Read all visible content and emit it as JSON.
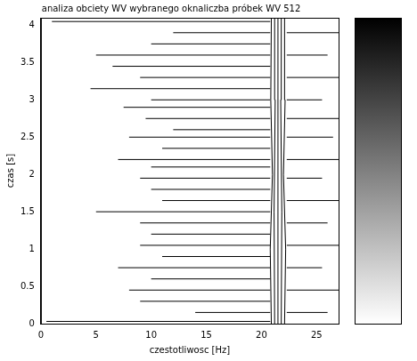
{
  "chart_data": {
    "type": "contour",
    "title": "analiza obciety WV wybranego oknaliczba próbek WV 512",
    "x_label": "czestotliwosc [Hz]",
    "y_label": "czas [s]",
    "xlim": [
      0,
      27
    ],
    "xticks": [
      0,
      5,
      10,
      15,
      20,
      25
    ],
    "ylim": [
      0,
      4.1
    ],
    "yticks": [
      0,
      0.5,
      1,
      1.5,
      2,
      2.5,
      3,
      3.5,
      4
    ],
    "grid": false,
    "color": "#000000",
    "colorbar": {
      "colors": [
        "#ffffff",
        "#000000"
      ]
    },
    "contours": [
      [
        [
          20.9,
          0
        ],
        [
          20.8,
          1
        ],
        [
          21.0,
          2
        ],
        [
          20.85,
          3
        ],
        [
          20.9,
          4.1
        ]
      ],
      [
        [
          21.2,
          0
        ],
        [
          21.15,
          1.5
        ],
        [
          21.25,
          3
        ],
        [
          21.2,
          4.1
        ]
      ],
      [
        [
          21.5,
          0
        ],
        [
          21.5,
          4.1
        ]
      ],
      [
        [
          21.8,
          0
        ],
        [
          21.85,
          1.5
        ],
        [
          21.75,
          3
        ],
        [
          21.8,
          4.1
        ]
      ],
      [
        [
          22.1,
          0
        ],
        [
          22.2,
          1
        ],
        [
          22.0,
          2
        ],
        [
          22.15,
          3
        ],
        [
          22.1,
          4.1
        ]
      ],
      [
        [
          1,
          4.05
        ],
        [
          20.8,
          4.05
        ]
      ],
      [
        [
          12,
          3.9
        ],
        [
          20.8,
          3.9
        ]
      ],
      [
        [
          10,
          3.75
        ],
        [
          20.8,
          3.75
        ]
      ],
      [
        [
          5,
          3.6
        ],
        [
          20.8,
          3.6
        ]
      ],
      [
        [
          6.5,
          3.45
        ],
        [
          20.8,
          3.45
        ]
      ],
      [
        [
          9,
          3.3
        ],
        [
          20.8,
          3.3
        ]
      ],
      [
        [
          4.5,
          3.15
        ],
        [
          20.8,
          3.15
        ]
      ],
      [
        [
          10,
          3.0
        ],
        [
          20.8,
          3.0
        ]
      ],
      [
        [
          7.5,
          2.9
        ],
        [
          20.8,
          2.9
        ]
      ],
      [
        [
          9.5,
          2.75
        ],
        [
          20.8,
          2.75
        ]
      ],
      [
        [
          12,
          2.6
        ],
        [
          20.8,
          2.6
        ]
      ],
      [
        [
          8,
          2.5
        ],
        [
          20.8,
          2.5
        ]
      ],
      [
        [
          11,
          2.35
        ],
        [
          20.8,
          2.35
        ]
      ],
      [
        [
          7,
          2.2
        ],
        [
          20.8,
          2.2
        ]
      ],
      [
        [
          10,
          2.1
        ],
        [
          20.8,
          2.1
        ]
      ],
      [
        [
          9,
          1.95
        ],
        [
          20.8,
          1.95
        ]
      ],
      [
        [
          10,
          1.8
        ],
        [
          20.8,
          1.8
        ]
      ],
      [
        [
          11,
          1.65
        ],
        [
          20.8,
          1.65
        ]
      ],
      [
        [
          5,
          1.5
        ],
        [
          20.8,
          1.5
        ]
      ],
      [
        [
          9,
          1.35
        ],
        [
          20.8,
          1.35
        ]
      ],
      [
        [
          10,
          1.2
        ],
        [
          20.8,
          1.2
        ]
      ],
      [
        [
          9,
          1.05
        ],
        [
          20.8,
          1.05
        ]
      ],
      [
        [
          11,
          0.9
        ],
        [
          20.8,
          0.9
        ]
      ],
      [
        [
          7,
          0.75
        ],
        [
          20.8,
          0.75
        ]
      ],
      [
        [
          10,
          0.6
        ],
        [
          20.8,
          0.6
        ]
      ],
      [
        [
          8,
          0.45
        ],
        [
          20.8,
          0.45
        ]
      ],
      [
        [
          9,
          0.3
        ],
        [
          20.8,
          0.3
        ]
      ],
      [
        [
          14,
          0.15
        ],
        [
          20.8,
          0.15
        ]
      ],
      [
        [
          0.5,
          0.03
        ],
        [
          20.8,
          0.03
        ]
      ],
      [
        [
          22.3,
          3.9
        ],
        [
          27,
          3.9
        ]
      ],
      [
        [
          22.3,
          3.6
        ],
        [
          26,
          3.6
        ]
      ],
      [
        [
          22.3,
          3.3
        ],
        [
          27,
          3.3
        ]
      ],
      [
        [
          22.3,
          3.0
        ],
        [
          25.5,
          3.0
        ]
      ],
      [
        [
          22.3,
          2.75
        ],
        [
          27,
          2.75
        ]
      ],
      [
        [
          22.3,
          2.5
        ],
        [
          26.5,
          2.5
        ]
      ],
      [
        [
          22.3,
          2.2
        ],
        [
          27,
          2.2
        ]
      ],
      [
        [
          22.3,
          1.95
        ],
        [
          25.5,
          1.95
        ]
      ],
      [
        [
          22.3,
          1.65
        ],
        [
          27,
          1.65
        ]
      ],
      [
        [
          22.3,
          1.35
        ],
        [
          26,
          1.35
        ]
      ],
      [
        [
          22.3,
          1.05
        ],
        [
          27,
          1.05
        ]
      ],
      [
        [
          22.3,
          0.75
        ],
        [
          25.5,
          0.75
        ]
      ],
      [
        [
          22.3,
          0.45
        ],
        [
          27,
          0.45
        ]
      ],
      [
        [
          22.3,
          0.15
        ],
        [
          26,
          0.15
        ]
      ]
    ]
  }
}
